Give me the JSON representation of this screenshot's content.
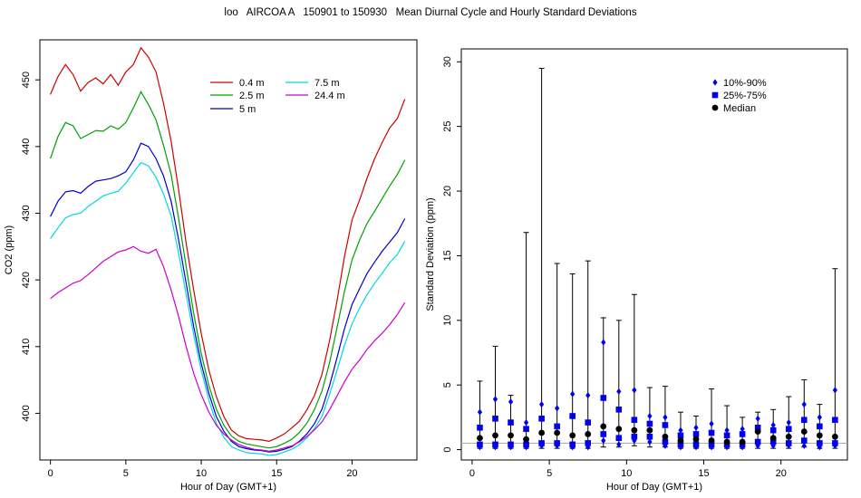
{
  "title": "loo   AIRCOA A   150901 to 150930   Mean Diurnal Cycle and Hourly Standard Deviations",
  "chart_data": [
    {
      "type": "line",
      "title": "",
      "xlabel": "Hour of Day (GMT+1)",
      "ylabel": "CO2 (ppm)",
      "xlim": [
        -0.7,
        24.3
      ],
      "ylim": [
        393,
        456
      ],
      "xticks": [
        0,
        5,
        10,
        15,
        20
      ],
      "yticks": [
        400,
        410,
        420,
        430,
        440,
        450
      ],
      "legend_position": "top-right",
      "x": [
        0,
        0.5,
        1,
        1.5,
        2,
        2.5,
        3,
        3.5,
        4,
        4.5,
        5,
        5.5,
        6,
        6.5,
        7,
        7.5,
        8,
        8.5,
        9,
        9.5,
        10,
        10.5,
        11,
        11.5,
        12,
        12.5,
        13,
        13.5,
        14,
        14.5,
        15,
        15.5,
        16,
        16.5,
        17,
        17.5,
        18,
        18.5,
        19,
        19.5,
        20,
        20.5,
        21,
        21.5,
        22,
        22.5,
        23,
        23.5
      ],
      "series": [
        {
          "name": "0.4 m",
          "color": "#d00000",
          "values": [
            447.8,
            450.5,
            452.3,
            450.8,
            448.3,
            449.6,
            450.3,
            449.4,
            450.8,
            449.2,
            451.2,
            452.3,
            454.8,
            453.4,
            451.2,
            446.5,
            440.8,
            433.5,
            425.5,
            418.5,
            412.0,
            406.5,
            402.5,
            399.5,
            397.5,
            396.6,
            396.2,
            396.1,
            396.0,
            395.8,
            396.3,
            396.9,
            397.8,
            398.8,
            400.5,
            402.6,
            405.8,
            410.8,
            416.8,
            423.5,
            429.0,
            432.0,
            435.3,
            438.2,
            440.6,
            442.8,
            444.2,
            447.1
          ]
        },
        {
          "name": "2.5 m",
          "color": "#00a000",
          "values": [
            438.2,
            441.5,
            443.6,
            443.1,
            441.2,
            441.8,
            442.4,
            442.3,
            443.1,
            442.6,
            443.6,
            445.8,
            448.2,
            446.3,
            444.0,
            440.2,
            435.8,
            429.2,
            422.0,
            415.0,
            409.0,
            404.2,
            400.6,
            398.2,
            396.6,
            395.8,
            395.4,
            395.2,
            395.0,
            394.8,
            395.0,
            395.5,
            396.1,
            397.1,
            398.5,
            400.5,
            403.3,
            407.5,
            412.8,
            418.3,
            423.0,
            426.0,
            428.5,
            430.3,
            432.2,
            434.1,
            435.8,
            438.0
          ]
        },
        {
          "name": "5 m",
          "color": "#0000cc",
          "values": [
            429.5,
            431.8,
            433.2,
            433.4,
            433.0,
            434.0,
            434.8,
            435.0,
            435.2,
            435.6,
            436.2,
            438.0,
            440.5,
            440.0,
            438.2,
            435.6,
            431.8,
            426.0,
            419.5,
            413.0,
            407.5,
            403.0,
            399.5,
            397.3,
            395.8,
            395.0,
            394.7,
            394.5,
            394.4,
            394.2,
            394.3,
            394.6,
            395.0,
            395.8,
            396.9,
            398.4,
            400.6,
            404.1,
            408.3,
            412.7,
            416.3,
            418.7,
            421.0,
            422.7,
            424.3,
            425.7,
            427.1,
            429.2
          ]
        },
        {
          "name": "7.5 m",
          "color": "#00d8e0",
          "values": [
            426.2,
            427.8,
            429.3,
            429.8,
            430.0,
            431.0,
            431.8,
            432.6,
            433.0,
            433.3,
            434.5,
            436.1,
            437.6,
            437.1,
            435.4,
            432.9,
            429.6,
            424.0,
            417.8,
            411.8,
            406.5,
            402.0,
            398.5,
            396.4,
            395.0,
            394.5,
            394.1,
            394.0,
            393.9,
            393.7,
            393.8,
            394.2,
            394.6,
            395.3,
            396.3,
            397.7,
            399.5,
            402.8,
            406.4,
            410.2,
            413.4,
            415.8,
            417.8,
            419.5,
            421.0,
            422.6,
            423.8,
            425.8
          ]
        },
        {
          "name": "24.4 m",
          "color": "#cc00cc",
          "values": [
            417.2,
            418.1,
            418.8,
            419.5,
            419.9,
            420.8,
            421.8,
            422.8,
            423.5,
            424.2,
            424.5,
            425.0,
            424.3,
            424.0,
            424.6,
            422.0,
            418.5,
            414.5,
            410.0,
            406.0,
            402.8,
            400.2,
            398.2,
            396.9,
            396.0,
            395.3,
            394.9,
            394.6,
            394.5,
            394.3,
            394.5,
            394.8,
            395.1,
            395.7,
            396.5,
            397.5,
            398.7,
            400.5,
            402.6,
            404.7,
            406.6,
            408.0,
            409.6,
            410.9,
            412.0,
            413.3,
            414.8,
            416.6
          ]
        }
      ]
    },
    {
      "type": "scatter",
      "title": "",
      "xlabel": "Hour of Day (GMT+1)",
      "ylabel": "Standard Deviation (ppm)",
      "xlim": [
        -0.7,
        24.3
      ],
      "ylim": [
        -0.8,
        31
      ],
      "xticks": [
        0,
        5,
        10,
        15,
        20
      ],
      "yticks": [
        0,
        5,
        10,
        15,
        20,
        25,
        30
      ],
      "reference_line": 0.5,
      "legend_position": "top-right",
      "x": [
        0.5,
        1.5,
        2.5,
        3.5,
        4.5,
        5.5,
        6.5,
        7.5,
        8.5,
        9.5,
        10.5,
        11.5,
        12.5,
        13.5,
        14.5,
        15.5,
        16.5,
        17.5,
        18.5,
        19.5,
        20.5,
        21.5,
        22.5,
        23.5
      ],
      "max": [
        5.3,
        8.0,
        4.2,
        16.8,
        29.5,
        14.4,
        13.6,
        14.6,
        10.2,
        10.0,
        12.0,
        4.8,
        4.9,
        2.9,
        2.6,
        4.7,
        3.4,
        2.5,
        2.9,
        3.1,
        4.1,
        5.4,
        3.5,
        14.0
      ],
      "min": [
        0.1,
        0.1,
        0.1,
        0.1,
        0.1,
        0.1,
        0.1,
        0.1,
        0.2,
        0.2,
        0.3,
        0.2,
        0.2,
        0.1,
        0.1,
        0.1,
        0.1,
        0.1,
        0.1,
        0.1,
        0.1,
        0.2,
        0.1,
        0.1
      ],
      "series": [
        {
          "name": "10%-90%",
          "marker": "diamond",
          "color": "#0000ee",
          "upper": [
            2.9,
            3.9,
            3.7,
            2.1,
            3.5,
            3.2,
            4.3,
            4.2,
            8.3,
            4.5,
            4.6,
            2.6,
            2.5,
            1.5,
            1.7,
            2.0,
            1.5,
            1.6,
            2.4,
            1.9,
            2.1,
            3.5,
            2.5,
            4.6
          ],
          "lower": [
            0.2,
            0.2,
            0.2,
            0.2,
            0.3,
            0.3,
            0.2,
            0.2,
            0.7,
            0.4,
            0.7,
            0.6,
            0.3,
            0.2,
            0.2,
            0.2,
            0.2,
            0.2,
            0.3,
            0.3,
            0.3,
            0.3,
            0.2,
            0.3
          ]
        },
        {
          "name": "25%-75%",
          "marker": "square",
          "color": "#0000ee",
          "upper": [
            1.7,
            2.4,
            2.1,
            1.6,
            2.4,
            1.8,
            2.6,
            2.1,
            4.0,
            3.1,
            2.3,
            2.0,
            1.9,
            1.1,
            1.2,
            1.3,
            1.1,
            1.2,
            1.7,
            1.5,
            1.6,
            2.3,
            1.8,
            2.3
          ],
          "lower": [
            0.4,
            0.4,
            0.4,
            0.4,
            0.5,
            0.5,
            0.4,
            0.5,
            1.2,
            0.9,
            1.0,
            1.0,
            0.6,
            0.4,
            0.4,
            0.4,
            0.4,
            0.4,
            0.6,
            0.6,
            0.5,
            0.7,
            0.5,
            0.5
          ]
        },
        {
          "name": "Median",
          "marker": "circle",
          "color": "#000000",
          "values": [
            0.9,
            1.1,
            1.1,
            0.8,
            1.3,
            1.3,
            1.1,
            1.2,
            1.8,
            1.6,
            1.5,
            1.5,
            1.0,
            0.7,
            0.8,
            0.7,
            0.6,
            0.6,
            1.4,
            0.9,
            1.0,
            1.4,
            1.1,
            1.0
          ]
        }
      ]
    }
  ]
}
